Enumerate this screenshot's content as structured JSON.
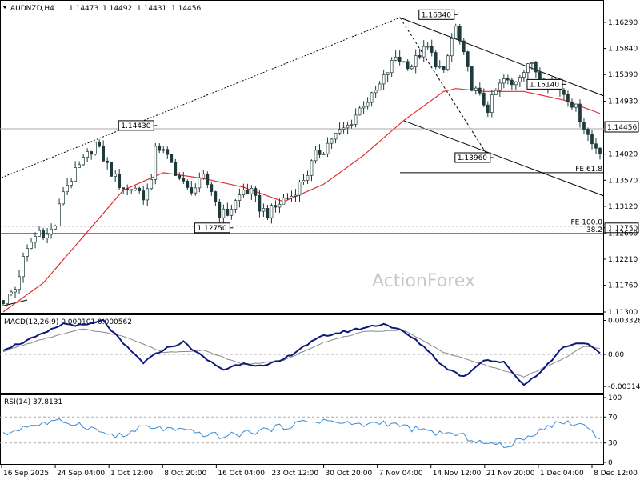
{
  "header": {
    "symbol": "AUDNZD,H4",
    "open": "1.14473",
    "high": "1.14492",
    "low": "1.14431",
    "close": "1.14456"
  },
  "watermark": "ActionForex",
  "colors": {
    "candle": "#1f3a3a",
    "ma": "#e03030",
    "macd": "#0b1a7a",
    "signal": "#888888",
    "rsi": "#3a8ad6",
    "grid": "#999999"
  },
  "chart_data": [
    {
      "type": "candlestick",
      "name": "price",
      "ylim": [
        1.113,
        1.1662
      ],
      "y_ticks": [
        "1.16290",
        "1.15840",
        "1.15390",
        "1.14930",
        "1.14456",
        "1.14020",
        "1.13570",
        "1.13120",
        "1.12750",
        "1.12660",
        "1.12210",
        "1.11760",
        "1.11300"
      ],
      "x_ticks": [
        "16 Sep 2025",
        "24 Sep 04:00",
        "1 Oct 12:00",
        "8 Oct 20:00",
        "16 Oct 04:00",
        "23 Oct 12:00",
        "30 Oct 20:00",
        "7 Nov 04:00",
        "14 Nov 12:00",
        "21 Nov 20:00",
        "1 Dec 04:00",
        "8 Dec 12:00"
      ],
      "bar_count": 150,
      "current_price": "1.14456",
      "callouts": [
        {
          "label": "1.16340",
          "price": 1.1634
        },
        {
          "label": "1.14430",
          "price": 1.1443
        },
        {
          "label": "1.12750",
          "price": 1.1275
        },
        {
          "label": "1.13960",
          "price": 1.1396
        },
        {
          "label": "1.15140",
          "price": 1.1514
        }
      ],
      "levels": [
        {
          "label": "FE 61.8",
          "price": 1.137
        },
        {
          "label": "FE 100.0",
          "price": 1.1278
        },
        {
          "label": "38.2",
          "price": 1.1265
        }
      ],
      "close_path": [
        [
          0,
          1.115
        ],
        [
          3,
          1.117
        ],
        [
          5,
          1.122
        ],
        [
          7,
          1.125
        ],
        [
          9,
          1.127
        ],
        [
          11,
          1.1262
        ],
        [
          13,
          1.128
        ],
        [
          15,
          1.134
        ],
        [
          17,
          1.136
        ],
        [
          19,
          1.138
        ],
        [
          21,
          1.14
        ],
        [
          23,
          1.142
        ],
        [
          25,
          1.1395
        ],
        [
          27,
          1.137
        ],
        [
          29,
          1.135
        ],
        [
          31,
          1.134
        ],
        [
          33,
          1.1345
        ],
        [
          35,
          1.133
        ],
        [
          37,
          1.135
        ],
        [
          38,
          1.142
        ],
        [
          40,
          1.1405
        ],
        [
          42,
          1.1385
        ],
        [
          44,
          1.136
        ],
        [
          46,
          1.134
        ],
        [
          48,
          1.1345
        ],
        [
          50,
          1.136
        ],
        [
          52,
          1.134
        ],
        [
          54,
          1.13
        ],
        [
          56,
          1.13
        ],
        [
          58,
          1.132
        ],
        [
          60,
          1.134
        ],
        [
          62,
          1.1335
        ],
        [
          64,
          1.131
        ],
        [
          66,
          1.13
        ],
        [
          68,
          1.131
        ],
        [
          70,
          1.1325
        ],
        [
          72,
          1.133
        ],
        [
          74,
          1.135
        ],
        [
          76,
          1.137
        ],
        [
          78,
          1.14
        ],
        [
          80,
          1.141
        ],
        [
          82,
          1.143
        ],
        [
          84,
          1.144
        ],
        [
          86,
          1.145
        ],
        [
          88,
          1.147
        ],
        [
          90,
          1.149
        ],
        [
          92,
          1.15
        ],
        [
          94,
          1.152
        ],
        [
          96,
          1.1545
        ],
        [
          98,
          1.157
        ],
        [
          100,
          1.156
        ],
        [
          102,
          1.1555
        ],
        [
          104,
          1.1575
        ],
        [
          106,
          1.1585
        ],
        [
          108,
          1.156
        ],
        [
          110,
          1.154
        ],
        [
          112,
          1.16
        ],
        [
          113,
          1.162
        ],
        [
          115,
          1.157
        ],
        [
          117,
          1.152
        ],
        [
          119,
          1.15
        ],
        [
          121,
          1.148
        ],
        [
          123,
          1.151
        ],
        [
          125,
          1.153
        ],
        [
          127,
          1.152
        ],
        [
          129,
          1.154
        ],
        [
          131,
          1.156
        ],
        [
          133,
          1.1545
        ],
        [
          135,
          1.1525
        ],
        [
          137,
          1.153
        ],
        [
          139,
          1.1515
        ],
        [
          141,
          1.15
        ],
        [
          143,
          1.148
        ],
        [
          145,
          1.145
        ],
        [
          147,
          1.142
        ],
        [
          149,
          1.141
        ]
      ],
      "ma_path": [
        [
          0,
          1.113
        ],
        [
          10,
          1.118
        ],
        [
          20,
          1.126
        ],
        [
          30,
          1.134
        ],
        [
          40,
          1.137
        ],
        [
          50,
          1.136
        ],
        [
          60,
          1.1345
        ],
        [
          70,
          1.132
        ],
        [
          80,
          1.135
        ],
        [
          90,
          1.14
        ],
        [
          100,
          1.146
        ],
        [
          110,
          1.151
        ],
        [
          113,
          1.1515
        ],
        [
          120,
          1.151
        ],
        [
          130,
          1.151
        ],
        [
          140,
          1.1495
        ],
        [
          149,
          1.1472
        ]
      ]
    },
    {
      "type": "line",
      "name": "MACD(12,26,9)",
      "header": "MACD(12,26,9) 0.000101 0.000562",
      "ylim": [
        -0.0036,
        0.0036
      ],
      "y_ticks": [
        "0.003328",
        "0.00",
        "-0.00314"
      ],
      "macd": [
        [
          0,
          0.0005
        ],
        [
          5,
          0.0012
        ],
        [
          10,
          0.002
        ],
        [
          15,
          0.003
        ],
        [
          20,
          0.0028
        ],
        [
          25,
          0.0033
        ],
        [
          30,
          0.001
        ],
        [
          35,
          -0.0008
        ],
        [
          40,
          0.0005
        ],
        [
          45,
          0.0012
        ],
        [
          50,
          -0.0003
        ],
        [
          55,
          -0.0015
        ],
        [
          60,
          -0.0008
        ],
        [
          65,
          -0.0012
        ],
        [
          70,
          -0.0005
        ],
        [
          75,
          0.0008
        ],
        [
          80,
          0.0018
        ],
        [
          85,
          0.0022
        ],
        [
          90,
          0.0026
        ],
        [
          95,
          0.003
        ],
        [
          100,
          0.0022
        ],
        [
          105,
          0.0008
        ],
        [
          110,
          -0.0012
        ],
        [
          115,
          -0.0022
        ],
        [
          120,
          -0.0005
        ],
        [
          125,
          -0.0008
        ],
        [
          130,
          -0.003
        ],
        [
          135,
          -0.0014
        ],
        [
          140,
          0.0008
        ],
        [
          145,
          0.0012
        ],
        [
          149,
          0.0001
        ]
      ],
      "signal": [
        [
          0,
          0.0003
        ],
        [
          10,
          0.0015
        ],
        [
          20,
          0.0025
        ],
        [
          30,
          0.0018
        ],
        [
          40,
          0.0002
        ],
        [
          50,
          0.0004
        ],
        [
          60,
          -0.001
        ],
        [
          70,
          -0.0006
        ],
        [
          80,
          0.0012
        ],
        [
          90,
          0.0022
        ],
        [
          100,
          0.0024
        ],
        [
          110,
          0.0002
        ],
        [
          120,
          -0.001
        ],
        [
          130,
          -0.0022
        ],
        [
          140,
          -0.0004
        ],
        [
          145,
          0.0008
        ],
        [
          149,
          0.0006
        ]
      ]
    },
    {
      "type": "line",
      "name": "RSI(14)",
      "header": "RSI(14) 37.8131",
      "ylim": [
        0,
        100
      ],
      "y_ticks": [
        "100",
        "70",
        "30",
        "0"
      ],
      "levels": [
        70,
        30
      ],
      "values": [
        [
          0,
          42
        ],
        [
          5,
          55
        ],
        [
          10,
          60
        ],
        [
          15,
          63
        ],
        [
          20,
          58
        ],
        [
          25,
          45
        ],
        [
          30,
          40
        ],
        [
          35,
          55
        ],
        [
          40,
          52
        ],
        [
          45,
          48
        ],
        [
          50,
          44
        ],
        [
          55,
          40
        ],
        [
          60,
          45
        ],
        [
          65,
          50
        ],
        [
          70,
          55
        ],
        [
          75,
          62
        ],
        [
          80,
          65
        ],
        [
          85,
          60
        ],
        [
          90,
          58
        ],
        [
          95,
          62
        ],
        [
          100,
          55
        ],
        [
          105,
          48
        ],
        [
          110,
          45
        ],
        [
          115,
          40
        ],
        [
          120,
          30
        ],
        [
          125,
          25
        ],
        [
          130,
          35
        ],
        [
          135,
          55
        ],
        [
          140,
          62
        ],
        [
          145,
          58
        ],
        [
          149,
          38
        ]
      ]
    }
  ]
}
